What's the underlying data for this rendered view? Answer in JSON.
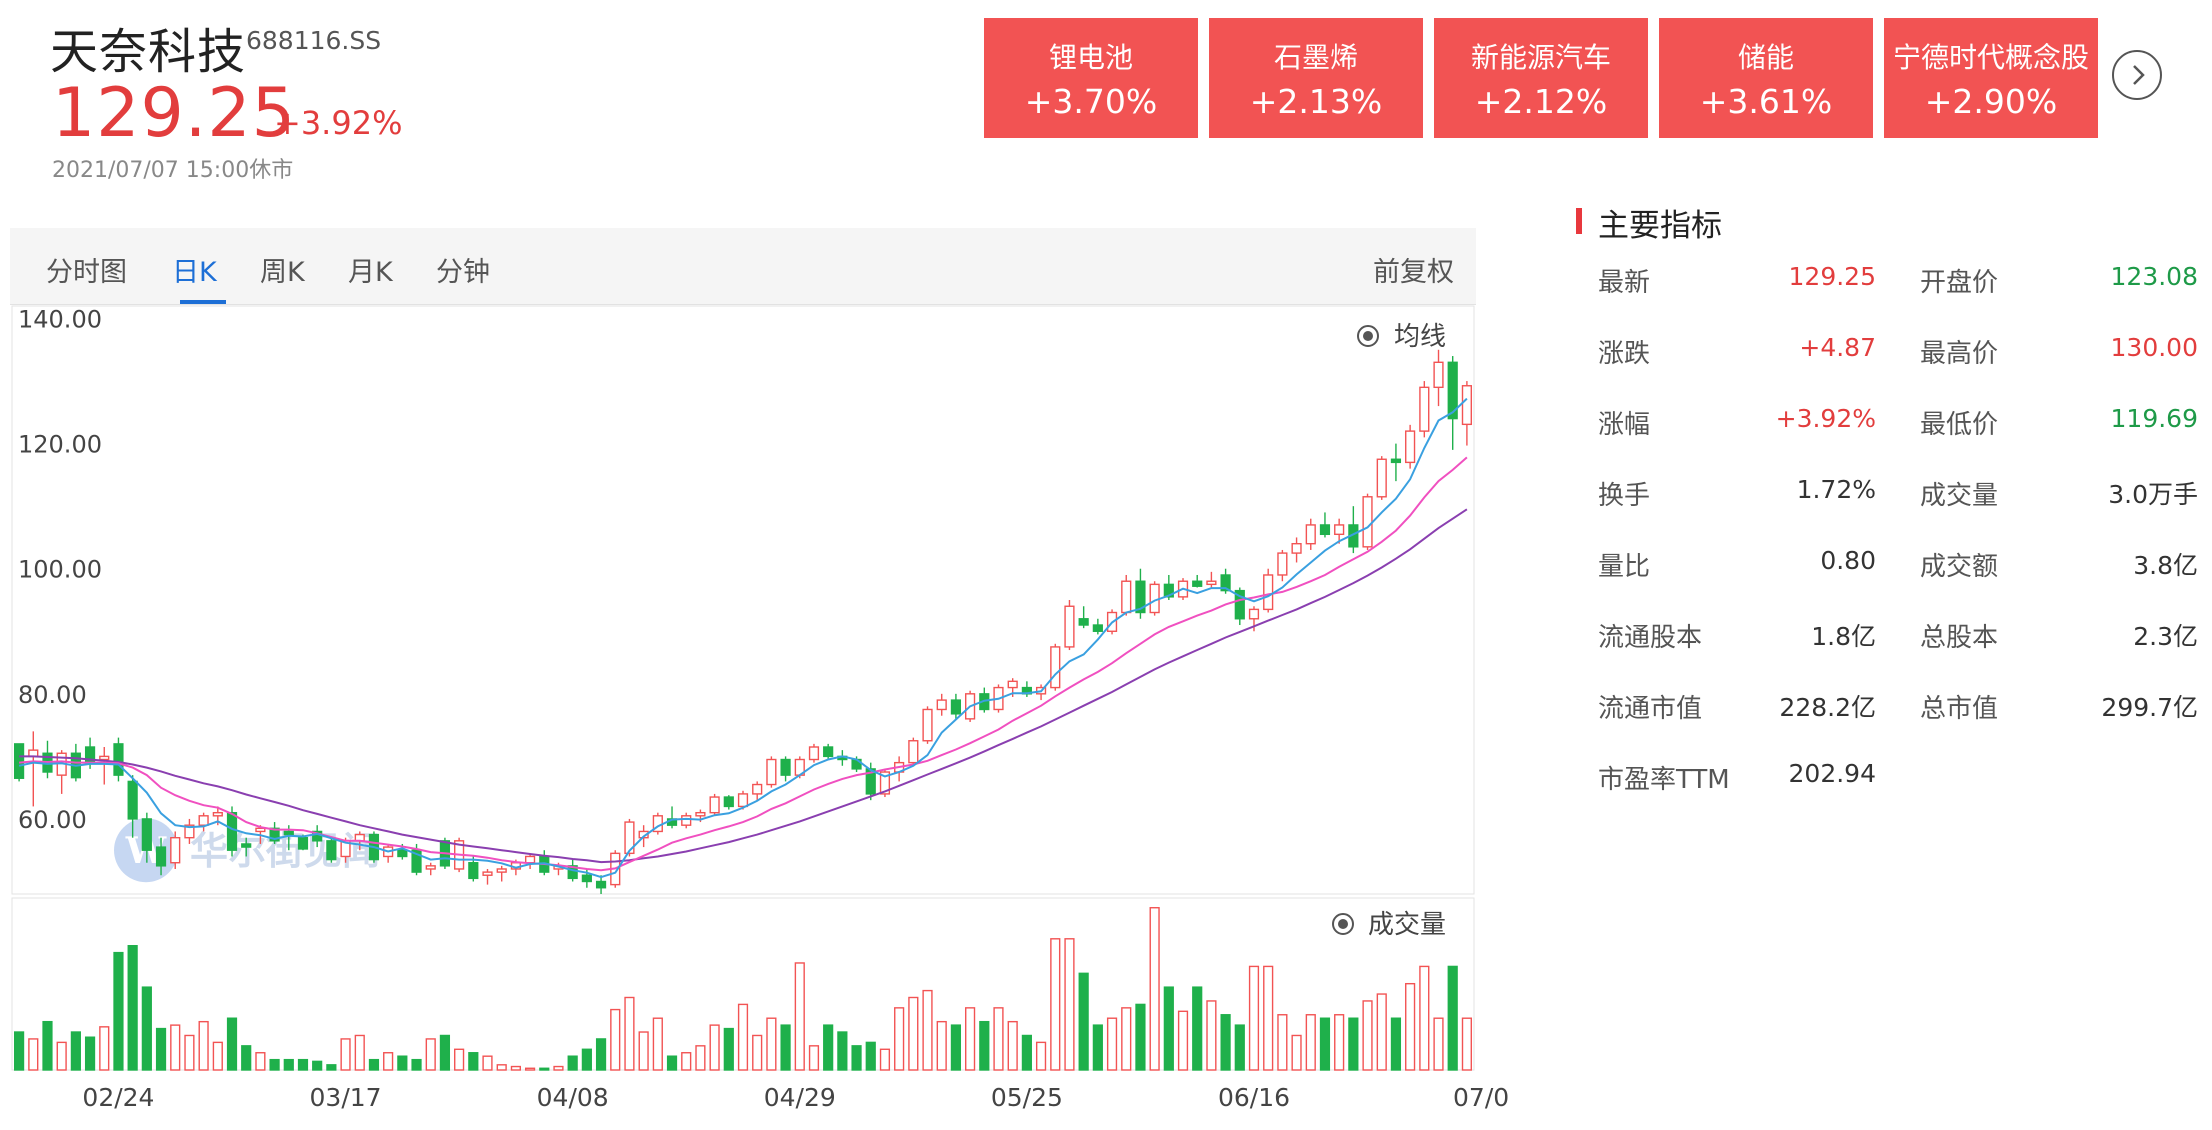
{
  "stock": {
    "name": "天奈科技",
    "code": "688116.SS",
    "price": "129.25",
    "change_pct": "+3.92%",
    "status_time": "2021/07/07 15:00休市"
  },
  "concepts": [
    {
      "name": "锂电池",
      "pct": "+3.70%"
    },
    {
      "name": "石墨烯",
      "pct": "+2.13%"
    },
    {
      "name": "新能源汽车",
      "pct": "+2.12%"
    },
    {
      "name": "储能",
      "pct": "+3.61%"
    },
    {
      "name": "宁德时代概念股",
      "pct": "+2.90%"
    }
  ],
  "tabs": [
    "分时图",
    "日K",
    "周K",
    "月K",
    "分钟"
  ],
  "active_tab": "日K",
  "adjust_label": "前复权",
  "indicators": {
    "title": "主要指标",
    "rows": [
      {
        "label": "最新",
        "value": "129.25",
        "tone": "up",
        "label2": "开盘价",
        "value2": "123.08",
        "tone2": "down"
      },
      {
        "label": "涨跌",
        "value": "+4.87",
        "tone": "up",
        "label2": "最高价",
        "value2": "130.00",
        "tone2": "up"
      },
      {
        "label": "涨幅",
        "value": "+3.92%",
        "tone": "up",
        "label2": "最低价",
        "value2": "119.69",
        "tone2": "down"
      },
      {
        "label": "换手",
        "value": "1.72%",
        "tone": "flat",
        "label2": "成交量",
        "value2": "3.0万手",
        "tone2": "flat"
      },
      {
        "label": "量比",
        "value": "0.80",
        "tone": "flat",
        "label2": "成交额",
        "value2": "3.8亿",
        "tone2": "flat"
      },
      {
        "label": "流通股本",
        "value": "1.8亿",
        "tone": "flat",
        "label2": "总股本",
        "value2": "2.3亿",
        "tone2": "flat"
      },
      {
        "label": "流通市值",
        "value": "228.2亿",
        "tone": "flat",
        "label2": "总市值",
        "value2": "299.7亿",
        "tone2": "flat"
      },
      {
        "label": "市盈率TTM",
        "value": "202.94",
        "tone": "flat",
        "label2": "",
        "value2": "",
        "tone2": "flat"
      }
    ]
  },
  "watermark": "华尔街见闻",
  "colors": {
    "up": "#f25353",
    "down": "#1fb04b",
    "ma5": "#3aa0e0",
    "ma10": "#f050c0",
    "ma20": "#8a3fb0"
  },
  "chart_data": {
    "type": "candlestick",
    "price_panel": {
      "legend_label": "均线",
      "y_ticks": [
        "140.00",
        "120.00",
        "100.00",
        "80.00",
        "60.00"
      ],
      "y_tick_values": [
        140,
        120,
        100,
        80,
        60
      ],
      "ylim": [
        48,
        142
      ]
    },
    "volume_panel": {
      "legend_label": "成交量"
    },
    "x_tick_labels": [
      "02/24",
      "03/17",
      "04/08",
      "04/29",
      "05/25",
      "06/16",
      "07/0"
    ],
    "x_tick_index": [
      7,
      23,
      39,
      55,
      71,
      87,
      103
    ],
    "ohlc": [
      [
        72.0,
        71.5,
        66.0,
        66.5
      ],
      [
        70.0,
        74.0,
        62.0,
        71.0
      ],
      [
        70.5,
        72.5,
        66.5,
        67.5
      ],
      [
        67.0,
        71.0,
        64.0,
        70.5
      ],
      [
        70.5,
        72.0,
        66.0,
        66.6
      ],
      [
        71.5,
        73.0,
        68.0,
        69.0
      ],
      [
        69.5,
        71.5,
        65.5,
        70.0
      ],
      [
        72.0,
        73.0,
        66.0,
        67.0
      ],
      [
        66.0,
        67.0,
        57.0,
        60.0
      ],
      [
        60.0,
        61.0,
        53.0,
        55.0
      ],
      [
        55.5,
        57.0,
        51.0,
        52.5
      ],
      [
        53.0,
        58.0,
        52.0,
        57.0
      ],
      [
        57.0,
        60.0,
        56.0,
        59.0
      ],
      [
        59.0,
        61.0,
        58.0,
        60.5
      ],
      [
        60.5,
        62.0,
        59.0,
        61.0
      ],
      [
        61.0,
        62.0,
        54.0,
        55.0
      ],
      [
        56.0,
        57.0,
        54.0,
        55.5
      ],
      [
        58.0,
        59.0,
        56.0,
        58.5
      ],
      [
        58.5,
        59.5,
        56.0,
        56.5
      ],
      [
        58.0,
        59.0,
        55.0,
        57.5
      ],
      [
        57.0,
        57.5,
        55.0,
        55.2
      ],
      [
        58.0,
        59.0,
        55.5,
        56.5
      ],
      [
        56.5,
        57.0,
        53.0,
        53.5
      ],
      [
        54.0,
        57.0,
        53.0,
        56.5
      ],
      [
        56.5,
        58.0,
        55.0,
        57.5
      ],
      [
        57.5,
        58.0,
        53.0,
        53.5
      ],
      [
        54.0,
        56.0,
        53.0,
        55.5
      ],
      [
        55.0,
        56.0,
        53.5,
        54.0
      ],
      [
        55.0,
        56.0,
        51.0,
        51.5
      ],
      [
        52.0,
        53.0,
        51.0,
        52.5
      ],
      [
        56.5,
        57.0,
        52.0,
        52.5
      ],
      [
        52.0,
        57.0,
        51.5,
        56.5
      ],
      [
        53.0,
        54.0,
        50.0,
        50.5
      ],
      [
        51.0,
        52.0,
        49.5,
        51.5
      ],
      [
        51.5,
        52.5,
        50.0,
        52.0
      ],
      [
        52.0,
        53.5,
        51.0,
        53.0
      ],
      [
        53.0,
        54.5,
        52.0,
        54.0
      ],
      [
        54.0,
        55.0,
        51.0,
        51.5
      ],
      [
        52.0,
        53.0,
        51.0,
        52.5
      ],
      [
        52.5,
        53.5,
        50.0,
        50.5
      ],
      [
        51.0,
        52.0,
        49.0,
        50.0
      ],
      [
        50.0,
        51.0,
        48.0,
        49.0
      ],
      [
        49.5,
        55.0,
        49.0,
        54.5
      ],
      [
        54.5,
        60.0,
        54.0,
        59.5
      ],
      [
        57.0,
        59.0,
        55.5,
        58.0
      ],
      [
        58.0,
        61.0,
        57.5,
        60.5
      ],
      [
        60.0,
        62.0,
        58.5,
        59.0
      ],
      [
        59.0,
        61.0,
        58.5,
        60.5
      ],
      [
        60.5,
        61.5,
        59.5,
        61.0
      ],
      [
        61.0,
        64.0,
        60.5,
        63.5
      ],
      [
        63.5,
        63.8,
        61.5,
        62.0
      ],
      [
        62.0,
        64.5,
        61.5,
        64.0
      ],
      [
        64.0,
        66.0,
        63.0,
        65.5
      ],
      [
        65.5,
        70.0,
        65.0,
        69.5
      ],
      [
        69.5,
        70.0,
        66.0,
        67.0
      ],
      [
        67.0,
        70.0,
        66.5,
        69.5
      ],
      [
        69.5,
        72.0,
        69.0,
        71.5
      ],
      [
        71.5,
        72.0,
        69.5,
        70.0
      ],
      [
        70.0,
        71.0,
        68.5,
        69.5
      ],
      [
        69.5,
        70.0,
        67.5,
        68.0
      ],
      [
        68.0,
        69.0,
        63.0,
        64.0
      ],
      [
        64.0,
        68.0,
        63.5,
        67.5
      ],
      [
        67.5,
        70.0,
        66.0,
        69.0
      ],
      [
        69.0,
        73.0,
        68.5,
        72.5
      ],
      [
        72.5,
        78.0,
        72.0,
        77.5
      ],
      [
        77.5,
        80.0,
        76.5,
        79.0
      ],
      [
        79.0,
        80.0,
        76.0,
        76.8
      ],
      [
        76.0,
        80.5,
        75.5,
        80.0
      ],
      [
        80.0,
        81.0,
        77.0,
        77.5
      ],
      [
        77.5,
        81.5,
        77.0,
        81.0
      ],
      [
        81.0,
        82.5,
        79.5,
        82.0
      ],
      [
        81.0,
        82.0,
        79.5,
        80.0
      ],
      [
        80.0,
        81.5,
        79.0,
        81.0
      ],
      [
        81.0,
        88.0,
        80.5,
        87.5
      ],
      [
        87.5,
        95.0,
        87.0,
        94.0
      ],
      [
        92.0,
        94.0,
        90.5,
        91.0
      ],
      [
        91.0,
        92.0,
        89.5,
        90.0
      ],
      [
        90.0,
        93.5,
        89.5,
        93.0
      ],
      [
        93.0,
        99.0,
        92.5,
        98.0
      ],
      [
        98.0,
        100.0,
        92.0,
        93.0
      ],
      [
        93.0,
        98.0,
        92.5,
        97.5
      ],
      [
        97.5,
        99.0,
        95.0,
        95.5
      ],
      [
        95.5,
        98.5,
        95.0,
        98.0
      ],
      [
        98.0,
        99.0,
        97.0,
        97.2
      ],
      [
        97.5,
        99.5,
        97.0,
        98.0
      ],
      [
        99.0,
        100.0,
        96.0,
        96.5
      ],
      [
        96.5,
        97.0,
        91.0,
        92.0
      ],
      [
        92.0,
        94.0,
        90.0,
        93.5
      ],
      [
        93.5,
        100.0,
        93.0,
        99.0
      ],
      [
        99.0,
        103.0,
        98.0,
        102.5
      ],
      [
        102.5,
        105.0,
        101.0,
        104.0
      ],
      [
        104.0,
        108.0,
        103.0,
        107.0
      ],
      [
        107.0,
        109.0,
        105.0,
        105.5
      ],
      [
        105.5,
        108.0,
        104.0,
        107.0
      ],
      [
        107.0,
        110.0,
        102.5,
        103.5
      ],
      [
        103.5,
        112.0,
        103.0,
        111.5
      ],
      [
        111.5,
        118.0,
        111.0,
        117.5
      ],
      [
        117.5,
        120.0,
        114.0,
        117.0
      ],
      [
        117.0,
        123.0,
        116.0,
        122.0
      ],
      [
        122.0,
        130.0,
        121.0,
        129.0
      ],
      [
        129.0,
        135.0,
        126.0,
        133.0
      ],
      [
        133.0,
        134.0,
        119.0,
        124.0
      ],
      [
        123.08,
        130.0,
        119.69,
        129.25
      ]
    ],
    "ma5": [
      68.5,
      69.0,
      68.8,
      68.9,
      68.5,
      68.8,
      68.8,
      68.7,
      66.5,
      64.2,
      60.9,
      59.0,
      58.7,
      58.8,
      59.6,
      58.4,
      57.7,
      57.4,
      56.8,
      57.3,
      57.2,
      57.6,
      56.9,
      56.2,
      55.9,
      55.5,
      54.8,
      55.3,
      54.4,
      53.5,
      53.7,
      53.5,
      53.5,
      53.3,
      52.9,
      52.2,
      52.8,
      52.9,
      52.4,
      51.8,
      51.4,
      50.7,
      51.4,
      54.9,
      57.2,
      58.8,
      59.9,
      60.0,
      59.9,
      60.6,
      60.9,
      61.8,
      62.9,
      64.4,
      65.5,
      67.0,
      68.6,
      69.5,
      70.0,
      69.5,
      67.8,
      66.8,
      67.5,
      68.5,
      70.2,
      73.8,
      75.9,
      78.0,
      78.9,
      79.2,
      80.1,
      80.1,
      80.4,
      83.1,
      85.2,
      86.3,
      88.7,
      91.4,
      93.0,
      93.6,
      94.9,
      95.7,
      96.8,
      96.1,
      96.9,
      96.9,
      95.6,
      94.8,
      95.6,
      97.0,
      99.1,
      101.0,
      102.9,
      104.4,
      105.5,
      106.6,
      109.0,
      111.2,
      114.3,
      119.3,
      123.7,
      125.0,
      127.2
    ],
    "ma10": [
      69.0,
      69.2,
      69.1,
      69.2,
      69.0,
      69.0,
      69.0,
      68.9,
      68.2,
      67.0,
      65.0,
      63.8,
      62.9,
      62.2,
      61.8,
      60.8,
      59.5,
      58.7,
      58.3,
      58.3,
      58.2,
      57.7,
      57.1,
      56.5,
      56.5,
      56.2,
      55.9,
      55.6,
      55.2,
      54.7,
      54.5,
      54.3,
      54.1,
      53.8,
      53.4,
      53.1,
      52.9,
      52.8,
      52.6,
      52.3,
      52.0,
      51.8,
      52.1,
      53.1,
      54.1,
      55.1,
      56.2,
      56.9,
      57.5,
      58.2,
      58.8,
      59.5,
      60.4,
      61.6,
      62.5,
      63.6,
      64.7,
      65.6,
      66.4,
      67.0,
      67.4,
      67.9,
      68.3,
      68.7,
      69.3,
      70.2,
      71.1,
      72.1,
      73.2,
      74.3,
      75.7,
      76.9,
      78.1,
      79.6,
      81.0,
      82.3,
      83.5,
      84.9,
      86.5,
      88.0,
      89.5,
      90.7,
      91.6,
      92.5,
      93.3,
      94.3,
      95.0,
      95.4,
      95.9,
      96.3,
      97.1,
      98.0,
      99.0,
      100.3,
      101.5,
      102.7,
      104.3,
      106.1,
      108.5,
      111.4,
      114.0,
      115.8,
      117.8
    ],
    "ma20": [
      70.0,
      70.0,
      69.9,
      69.8,
      69.7,
      69.5,
      69.3,
      69.1,
      68.7,
      68.2,
      67.6,
      66.9,
      66.3,
      65.7,
      65.2,
      64.6,
      63.9,
      63.3,
      62.7,
      62.1,
      61.4,
      60.8,
      60.2,
      59.6,
      59.0,
      58.5,
      58.0,
      57.5,
      57.1,
      56.7,
      56.3,
      55.9,
      55.6,
      55.3,
      55.0,
      54.7,
      54.4,
      54.1,
      53.9,
      53.6,
      53.4,
      53.1,
      53.2,
      53.4,
      53.7,
      54.0,
      54.4,
      54.8,
      55.3,
      55.8,
      56.3,
      56.9,
      57.5,
      58.2,
      58.9,
      59.6,
      60.4,
      61.2,
      62.0,
      62.8,
      63.6,
      64.4,
      65.3,
      66.2,
      67.1,
      68.0,
      68.9,
      69.8,
      70.8,
      71.8,
      72.8,
      73.8,
      74.8,
      75.9,
      77.0,
      78.1,
      79.2,
      80.3,
      81.5,
      82.7,
      83.9,
      85.0,
      86.0,
      87.0,
      88.0,
      89.0,
      89.9,
      90.8,
      91.7,
      92.6,
      93.5,
      94.5,
      95.5,
      96.6,
      97.7,
      98.9,
      100.2,
      101.6,
      103.1,
      104.8,
      106.5,
      108.0,
      109.5
    ],
    "volume": [
      22,
      18,
      28,
      16,
      22,
      19,
      25,
      68,
      72,
      48,
      24,
      26,
      20,
      28,
      16,
      30,
      14,
      10,
      6,
      6,
      6,
      5,
      3,
      18,
      20,
      6,
      10,
      8,
      6,
      18,
      20,
      12,
      10,
      8,
      3,
      2,
      1,
      1,
      2,
      8,
      12,
      18,
      35,
      42,
      22,
      30,
      8,
      10,
      14,
      26,
      24,
      38,
      20,
      30,
      26,
      62,
      14,
      26,
      22,
      14,
      16,
      12,
      36,
      42,
      46,
      28,
      26,
      36,
      28,
      36,
      28,
      20,
      16,
      76,
      76,
      56,
      26,
      30,
      36,
      38,
      94,
      48,
      34,
      48,
      40,
      32,
      26,
      60,
      60,
      32,
      20,
      32,
      30,
      32,
      30,
      40,
      44,
      30,
      50,
      60,
      30,
      60,
      30
    ],
    "volume_ylim": [
      0,
      95
    ]
  }
}
